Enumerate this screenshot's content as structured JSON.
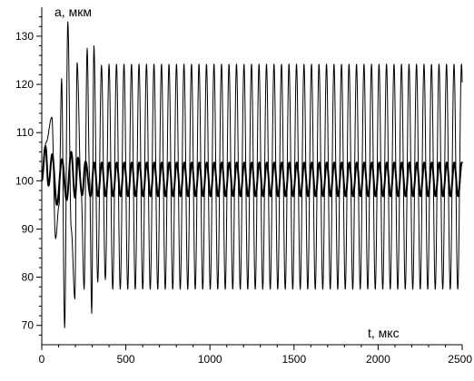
{
  "chart_data": {
    "type": "line",
    "title": "",
    "ylabel": "a, мкм",
    "xlabel": "t,  мкс",
    "xlim": [
      0,
      2500
    ],
    "ylim": [
      66,
      136
    ],
    "xticks": [
      0,
      500,
      1000,
      1500,
      2000,
      2500
    ],
    "yticks": [
      70,
      80,
      90,
      100,
      110,
      120,
      130
    ],
    "grid": false,
    "legend": "none",
    "series": [
      {
        "style": "thin",
        "color": "#000000",
        "period": 44.6,
        "settled_range": [
          77.5,
          124.2
        ],
        "points": [
          [
            0,
            100
          ],
          [
            26,
            108
          ],
          [
            60,
            113.2
          ],
          [
            82,
            88
          ],
          [
            103,
            95
          ],
          [
            118,
            121.2
          ],
          [
            136,
            69.5
          ],
          [
            155,
            133
          ],
          [
            175,
            90
          ],
          [
            197,
            75.5
          ],
          [
            210,
            124.5
          ],
          [
            234,
            98
          ],
          [
            252,
            77.5
          ],
          [
            270,
            127.5
          ],
          [
            284,
            101
          ],
          [
            297,
            72.5
          ],
          [
            310,
            128
          ],
          [
            333,
            79
          ],
          [
            355,
            124
          ],
          [
            378,
            79.5
          ],
          [
            400,
            124.2
          ],
          [
            422,
            77.5
          ],
          [
            2500,
            122
          ]
        ]
      },
      {
        "style": "thick",
        "color": "#000000",
        "period": 44.6,
        "settled_range": [
          96.8,
          103.8
        ],
        "points": [
          [
            0,
            100
          ],
          [
            22,
            107.2
          ],
          [
            40,
            99
          ],
          [
            62,
            105.5
          ],
          [
            90,
            95
          ],
          [
            120,
            104.5
          ],
          [
            148,
            96
          ],
          [
            175,
            106
          ],
          [
            198,
            96.5
          ],
          [
            215,
            104.8
          ],
          [
            240,
            97
          ],
          [
            260,
            104
          ],
          [
            290,
            96.8
          ],
          [
            2500,
            97
          ]
        ]
      }
    ]
  }
}
